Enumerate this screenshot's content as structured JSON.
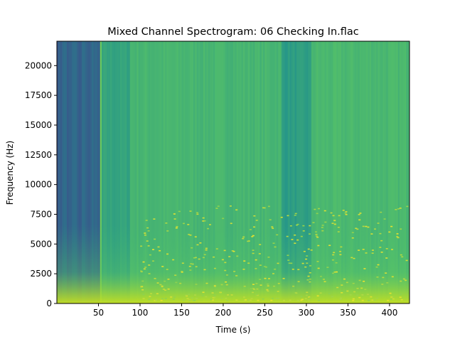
{
  "chart_data": {
    "type": "heatmap",
    "title": "Mixed Channel Spectrogram: 06 Checking In.flac",
    "xlabel": "Time (s)",
    "ylabel": "Frequency (Hz)",
    "xlim": [
      0,
      424
    ],
    "ylim": [
      0,
      22050
    ],
    "xticks": [
      50,
      100,
      150,
      200,
      250,
      300,
      350,
      400
    ],
    "yticks": [
      0,
      2500,
      5000,
      7500,
      10000,
      12500,
      15000,
      17500,
      20000
    ],
    "grid": false,
    "colormap": "viridis",
    "colors": {
      "low": "#1f8f8c",
      "mid": "#3fbc73",
      "high": "#b5de2b",
      "peak": "#d2e21b"
    },
    "regions": [
      {
        "t_start": 0,
        "t_end": 52,
        "level": 0.35
      },
      {
        "t_start": 52,
        "t_end": 88,
        "level": 0.58
      },
      {
        "t_start": 88,
        "t_end": 270,
        "level": 0.66
      },
      {
        "t_start": 270,
        "t_end": 306,
        "level": 0.55
      },
      {
        "t_start": 306,
        "t_end": 424,
        "level": 0.67
      }
    ]
  }
}
